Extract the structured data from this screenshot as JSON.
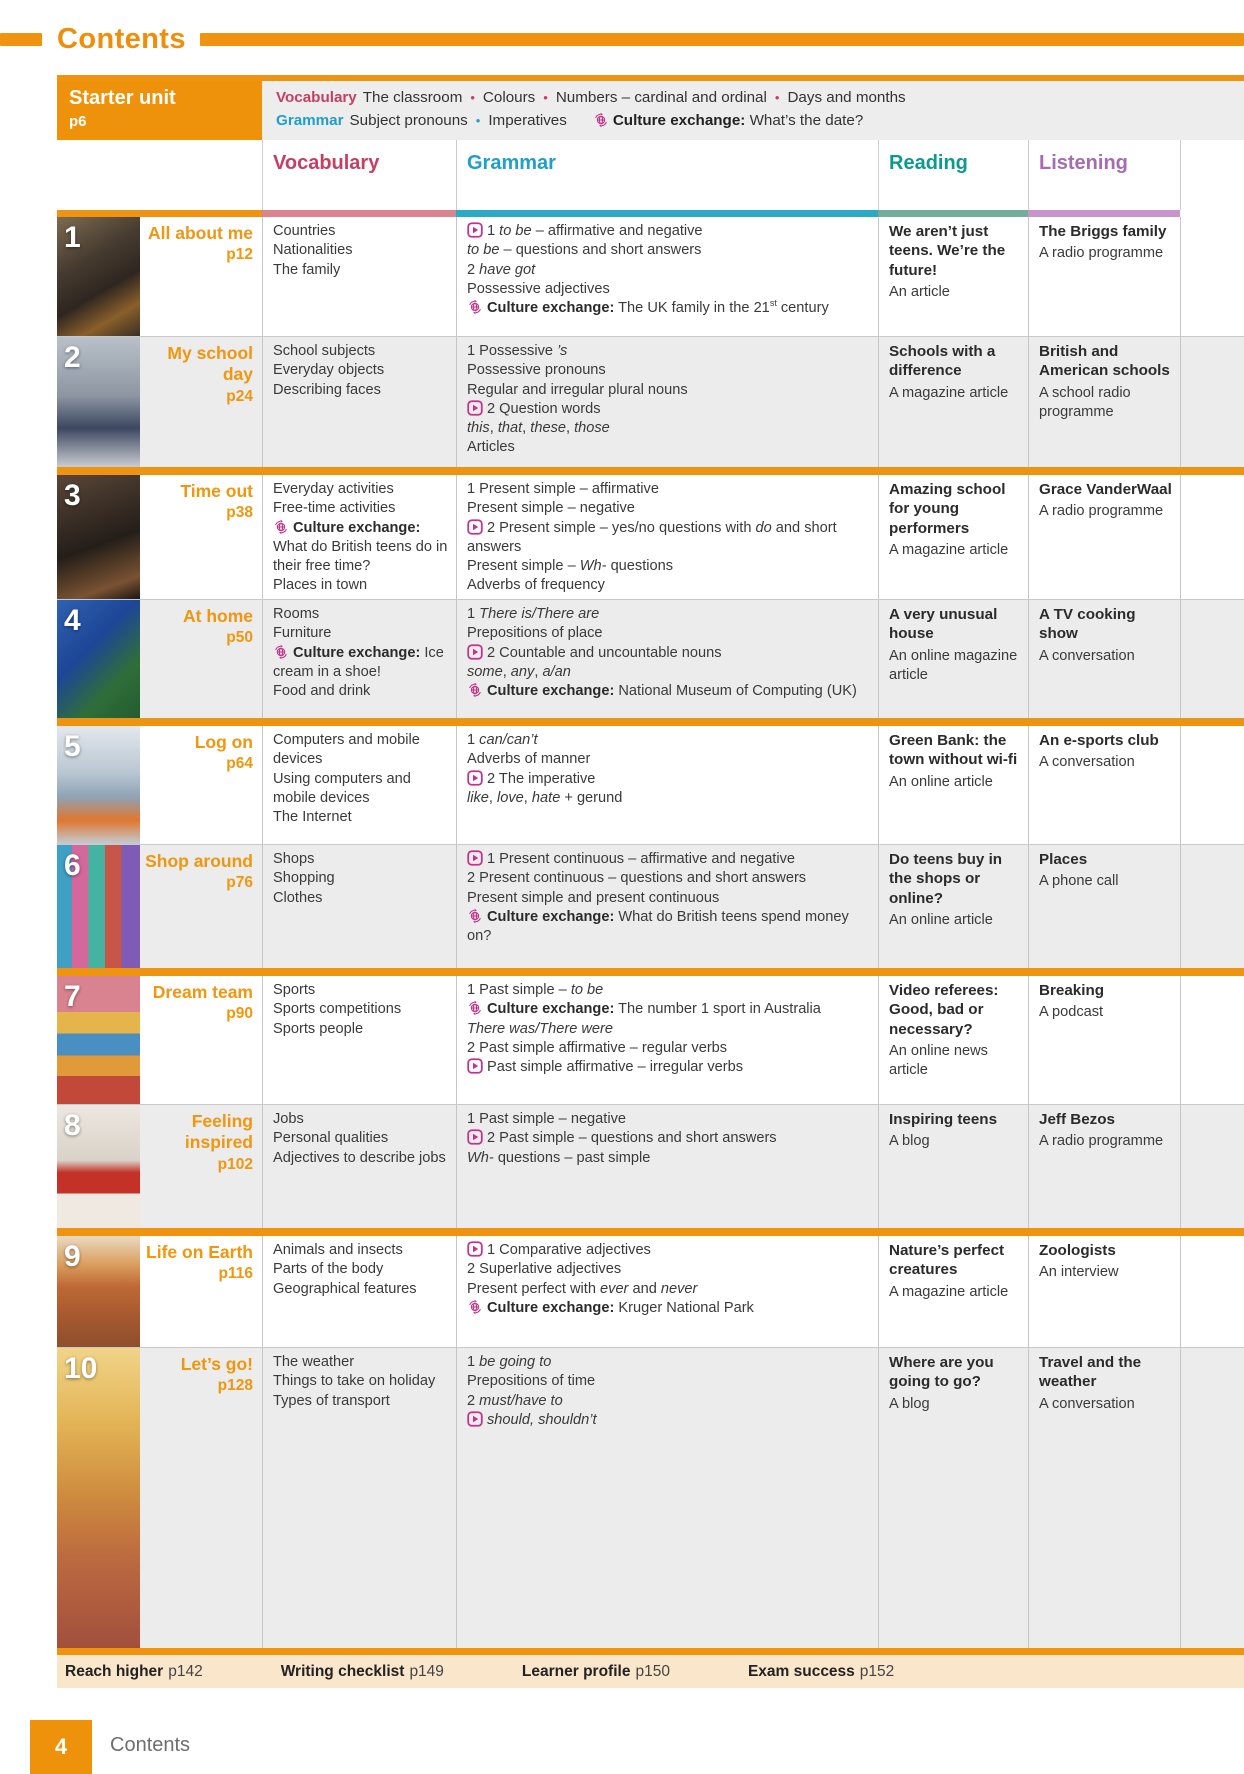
{
  "page_title": "Contents",
  "colors": {
    "accent_orange": "#EF9410",
    "icon_magenta": "#C2338A",
    "row_stripe_gray": "#ECECEC",
    "nav_bar_bg": "#FAE6CB"
  },
  "starter": {
    "title": "Starter unit",
    "page": "p6",
    "vocabulary_label": "Vocabulary",
    "vocabulary_items": [
      "The classroom",
      "Colours",
      "Numbers – cardinal and ordinal",
      "Days and months"
    ],
    "grammar_label": "Grammar",
    "grammar_items": [
      "Subject pronouns",
      "Imperatives"
    ],
    "culture_label": "Culture exchange:",
    "culture_text": "What’s the date?"
  },
  "columns": [
    {
      "label": "Vocabulary",
      "color": "#C73E62",
      "bar": "#D9848E"
    },
    {
      "label": "Grammar",
      "color": "#1E9FCC",
      "bar": "#2BAAC7"
    },
    {
      "label": "Reading",
      "color": "#0A9B8E",
      "bar": "#71AE9D"
    },
    {
      "label": "Listening",
      "color": "#A66BB0",
      "bar": "#C795CB"
    }
  ],
  "units": [
    {
      "num": "1",
      "title": "All about me",
      "page": "p12",
      "vocabulary": [
        "Countries",
        "Nationalities",
        "The family"
      ],
      "grammar": [
        "[play]1 *to be* – affirmative and negative",
        "*to be* – questions and short answers",
        "2 *have got*",
        "Possessive adjectives",
        "[culture]**Culture exchange:** The UK family in the 21^{st} century"
      ],
      "reading": {
        "title": "We aren’t just teens. We’re the future!",
        "sub": "An article"
      },
      "listening": {
        "title": "The Briggs family",
        "sub": "A radio programme"
      }
    },
    {
      "num": "2",
      "title": "My school day",
      "page": "p24",
      "vocabulary": [
        "School subjects",
        "Everyday objects",
        "Describing faces"
      ],
      "grammar": [
        "1 Possessive *’s*",
        "Possessive pronouns",
        "Regular and irregular plural nouns",
        "[play]2 Question words",
        "*this*, *that*, *these*, *those*",
        "Articles"
      ],
      "reading": {
        "title": "Schools with a difference",
        "sub": "A magazine article"
      },
      "listening": {
        "title": "British and American schools",
        "sub": "A school radio programme"
      }
    },
    {
      "num": "3",
      "title": "Time out",
      "page": "p38",
      "vocabulary": [
        "Everyday activities",
        "Free-time activities",
        "[culture]**Culture exchange:** What do British teens do in their free time?",
        "Places in town"
      ],
      "grammar": [
        "1 Present simple – affirmative",
        "Present simple – negative",
        "[play]2 Present simple – yes/no questions with *do* and short answers",
        "Present simple – *Wh-* questions",
        "Adverbs of frequency"
      ],
      "reading": {
        "title": "Amazing school for young performers",
        "sub": "A magazine article"
      },
      "listening": {
        "title": "Grace VanderWaal",
        "sub": "A radio programme"
      }
    },
    {
      "num": "4",
      "title": "At home",
      "page": "p50",
      "vocabulary": [
        "Rooms",
        "Furniture",
        "[culture]**Culture exchange:** Ice cream in a shoe!",
        "Food and drink"
      ],
      "grammar": [
        "1 *There is/There are*",
        "Prepositions of place",
        "[play]2 Countable and uncountable nouns",
        "*some*, *any*, *a/an*",
        "[culture]**Culture exchange:** National Museum of Computing (UK)"
      ],
      "reading": {
        "title": "A very unusual house",
        "sub": "An online magazine article"
      },
      "listening": {
        "title": "A TV cooking show",
        "sub": "A conversation"
      }
    },
    {
      "num": "5",
      "title": "Log on",
      "page": "p64",
      "vocabulary": [
        "Computers and mobile devices",
        "Using computers and mobile devices",
        "The Internet"
      ],
      "grammar": [
        "1 *can/can’t*",
        "Adverbs of manner",
        "[play]2 The imperative",
        "*like*, *love*, *hate* + gerund"
      ],
      "reading": {
        "title": "Green Bank: the town without wi-fi",
        "sub": "An online article"
      },
      "listening": {
        "title": "An e-sports club",
        "sub": "A conversation"
      }
    },
    {
      "num": "6",
      "title": "Shop around",
      "page": "p76",
      "vocabulary": [
        "Shops",
        "Shopping",
        "Clothes"
      ],
      "grammar": [
        "[play]1 Present continuous – affirmative and negative",
        "2 Present continuous – questions and short answers",
        "Present simple and present continuous",
        "[culture]**Culture exchange:** What do British teens spend money on?"
      ],
      "reading": {
        "title": "Do teens buy in the shops or online?",
        "sub": "An online article"
      },
      "listening": {
        "title": "Places",
        "sub": "A phone call"
      }
    },
    {
      "num": "7",
      "title": "Dream team",
      "page": "p90",
      "vocabulary": [
        "Sports",
        "Sports competitions",
        "Sports people"
      ],
      "grammar": [
        "1 Past simple – *to be*",
        "[culture]**Culture exchange:** The number 1 sport in Australia",
        "*There was/There were*",
        "2 Past simple affirmative – regular verbs",
        "[play]Past simple affirmative – irregular verbs"
      ],
      "reading": {
        "title": "Video referees: Good, bad or necessary?",
        "sub": "An online news article"
      },
      "listening": {
        "title": "Breaking",
        "sub": "A podcast"
      }
    },
    {
      "num": "8",
      "title": "Feeling inspired",
      "page": "p102",
      "vocabulary": [
        "Jobs",
        "Personal qualities",
        "Adjectives to describe jobs"
      ],
      "grammar": [
        "1 Past simple – negative",
        "[play]2 Past simple – questions and short answers",
        "*Wh-* questions – past simple"
      ],
      "reading": {
        "title": "Inspiring teens",
        "sub": "A blog"
      },
      "listening": {
        "title": "Jeff Bezos",
        "sub": "A radio programme"
      }
    },
    {
      "num": "9",
      "title": "Life on Earth",
      "page": "p116",
      "vocabulary": [
        "Animals and insects",
        "Parts of the body",
        "Geographical features"
      ],
      "grammar": [
        "[play]1 Comparative adjectives",
        "2 Superlative adjectives",
        "Present perfect with *ever* and *never*",
        "[culture]**Culture exchange:** Kruger National Park"
      ],
      "reading": {
        "title": "Nature’s perfect creatures",
        "sub": "A magazine article"
      },
      "listening": {
        "title": "Zoologists",
        "sub": "An interview"
      }
    },
    {
      "num": "10",
      "title": "Let’s go!",
      "page": "p128",
      "vocabulary": [
        "The weather",
        "Things to take on holiday",
        "Types of transport"
      ],
      "grammar": [
        "1 *be going to*",
        "Prepositions of time",
        "2 *must/have to*",
        "[play]*should, shouldn’t*"
      ],
      "reading": {
        "title": "Where are you going to go?",
        "sub": "A blog"
      },
      "listening": {
        "title": "Travel and the weather",
        "sub": "A conversation"
      }
    }
  ],
  "footer_nav": [
    {
      "label": "Reach higher",
      "page": "p142"
    },
    {
      "label": "Writing checklist",
      "page": "p149"
    },
    {
      "label": "Learner profile",
      "page": "p150"
    },
    {
      "label": "Exam success",
      "page": "p152"
    }
  ],
  "footer": {
    "page_number": "4",
    "label": "Contents"
  }
}
